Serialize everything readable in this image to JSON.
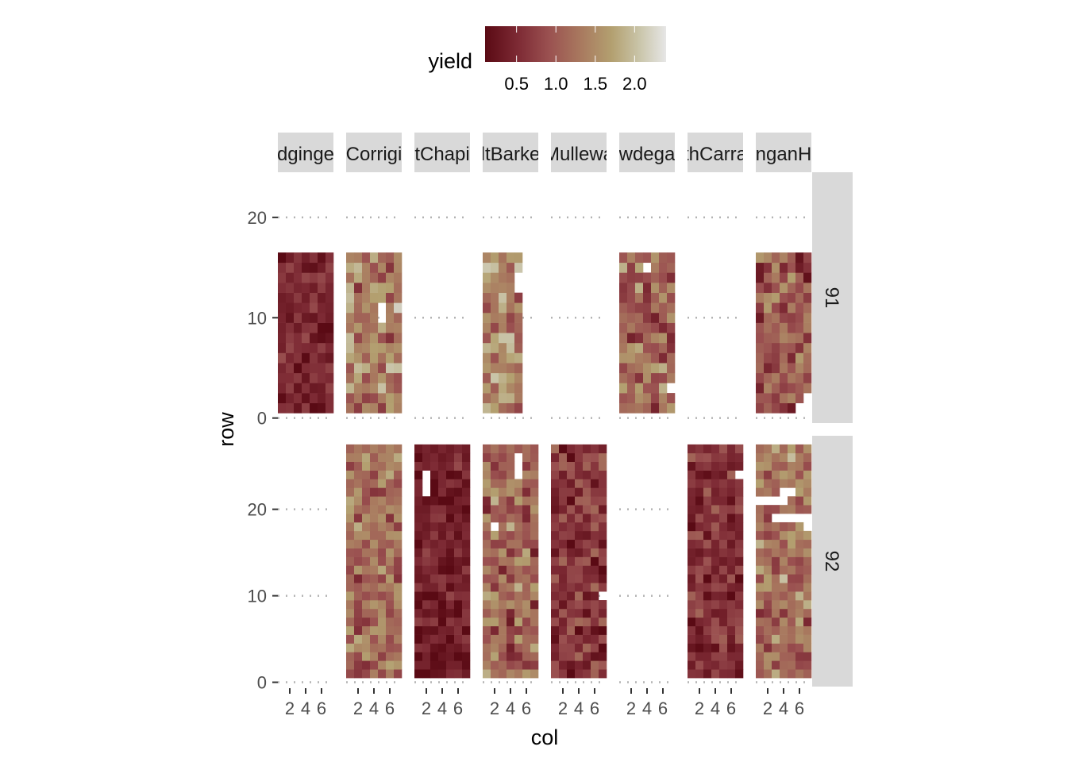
{
  "chart_data": {
    "type": "heatmap",
    "xlabel": "col",
    "ylabel": "row",
    "fill_label": "yield",
    "facet_columns": [
      "dginge",
      "Corrigi",
      "tChapi",
      "ltBarke",
      "Mullewa",
      "wdega",
      "thCarra",
      "nganH"
    ],
    "facet_rows": [
      "91",
      "92"
    ],
    "x_ticks": [
      2,
      4,
      6
    ],
    "y_ticks": [
      0,
      10,
      20
    ],
    "ylim_rows": {
      "91": [
        -0.5,
        24.5
      ],
      "92": [
        -0.5,
        28.5
      ]
    },
    "xlim": [
      0.5,
      7.5
    ],
    "legend": {
      "position": "top",
      "breaks": [
        0.5,
        1.0,
        1.5,
        2.0
      ],
      "break_labels": [
        "0.5",
        "1.0",
        "1.5",
        "2.0"
      ],
      "limits": [
        0.1,
        2.4
      ],
      "colors": [
        "#5a0a14",
        "#7d2a34",
        "#9a5050",
        "#a8775e",
        "#b3a070",
        "#c9c4a8",
        "#dcdcdc"
      ]
    },
    "panels": [
      {
        "facet_col": 0,
        "facet_row": 0,
        "ncols": 7,
        "nrows": 16,
        "mean": 0.45,
        "spread": 0.3,
        "seed": 11,
        "missing": []
      },
      {
        "facet_col": 1,
        "facet_row": 0,
        "ncols": 7,
        "nrows": 16,
        "mean": 1.35,
        "spread": 0.55,
        "seed": 12,
        "missing": [
          [
            5,
            10
          ],
          [
            5,
            11
          ]
        ]
      },
      {
        "facet_col": 3,
        "facet_row": 0,
        "ncols": 5,
        "nrows": 16,
        "mean": 1.45,
        "spread": 0.55,
        "seed": 13,
        "missing": [
          [
            5,
            14
          ],
          [
            5,
            13
          ]
        ]
      },
      {
        "facet_col": 5,
        "facet_row": 0,
        "ncols": 7,
        "nrows": 16,
        "mean": 1.05,
        "spread": 0.5,
        "seed": 14,
        "missing": [
          [
            4,
            15
          ],
          [
            7,
            3
          ]
        ]
      },
      {
        "facet_col": 7,
        "facet_row": 0,
        "ncols": 7,
        "nrows": 16,
        "mean": 0.95,
        "spread": 0.5,
        "seed": 15,
        "missing": [
          [
            6,
            1
          ],
          [
            7,
            1
          ],
          [
            7,
            2
          ]
        ]
      },
      {
        "facet_col": 1,
        "facet_row": 1,
        "ncols": 7,
        "nrows": 27,
        "mean": 1.15,
        "spread": 0.45,
        "seed": 21,
        "missing": []
      },
      {
        "facet_col": 2,
        "facet_row": 1,
        "ncols": 7,
        "nrows": 27,
        "mean": 0.35,
        "spread": 0.3,
        "seed": 22,
        "missing": [
          [
            2,
            22
          ],
          [
            2,
            23
          ],
          [
            2,
            24
          ]
        ]
      },
      {
        "facet_col": 3,
        "facet_row": 1,
        "ncols": 7,
        "nrows": 27,
        "mean": 1.1,
        "spread": 0.55,
        "seed": 23,
        "missing": [
          [
            5,
            24
          ],
          [
            5,
            25
          ],
          [
            5,
            26
          ],
          [
            2,
            18
          ]
        ]
      },
      {
        "facet_col": 4,
        "facet_row": 1,
        "ncols": 7,
        "nrows": 27,
        "mean": 0.6,
        "spread": 0.4,
        "seed": 24,
        "missing": [
          [
            7,
            10
          ]
        ]
      },
      {
        "facet_col": 6,
        "facet_row": 1,
        "ncols": 7,
        "nrows": 27,
        "mean": 0.55,
        "spread": 0.35,
        "seed": 25,
        "missing": [
          [
            7,
            24
          ]
        ]
      },
      {
        "facet_col": 7,
        "facet_row": 1,
        "ncols": 7,
        "nrows": 27,
        "mean": 1.2,
        "spread": 0.5,
        "seed": 26,
        "missing": [
          [
            1,
            21
          ],
          [
            2,
            21
          ],
          [
            3,
            21
          ],
          [
            4,
            21
          ],
          [
            4,
            22
          ],
          [
            5,
            22
          ],
          [
            3,
            19
          ],
          [
            4,
            19
          ],
          [
            5,
            19
          ],
          [
            6,
            19
          ],
          [
            7,
            19
          ],
          [
            7,
            18
          ]
        ]
      }
    ]
  }
}
